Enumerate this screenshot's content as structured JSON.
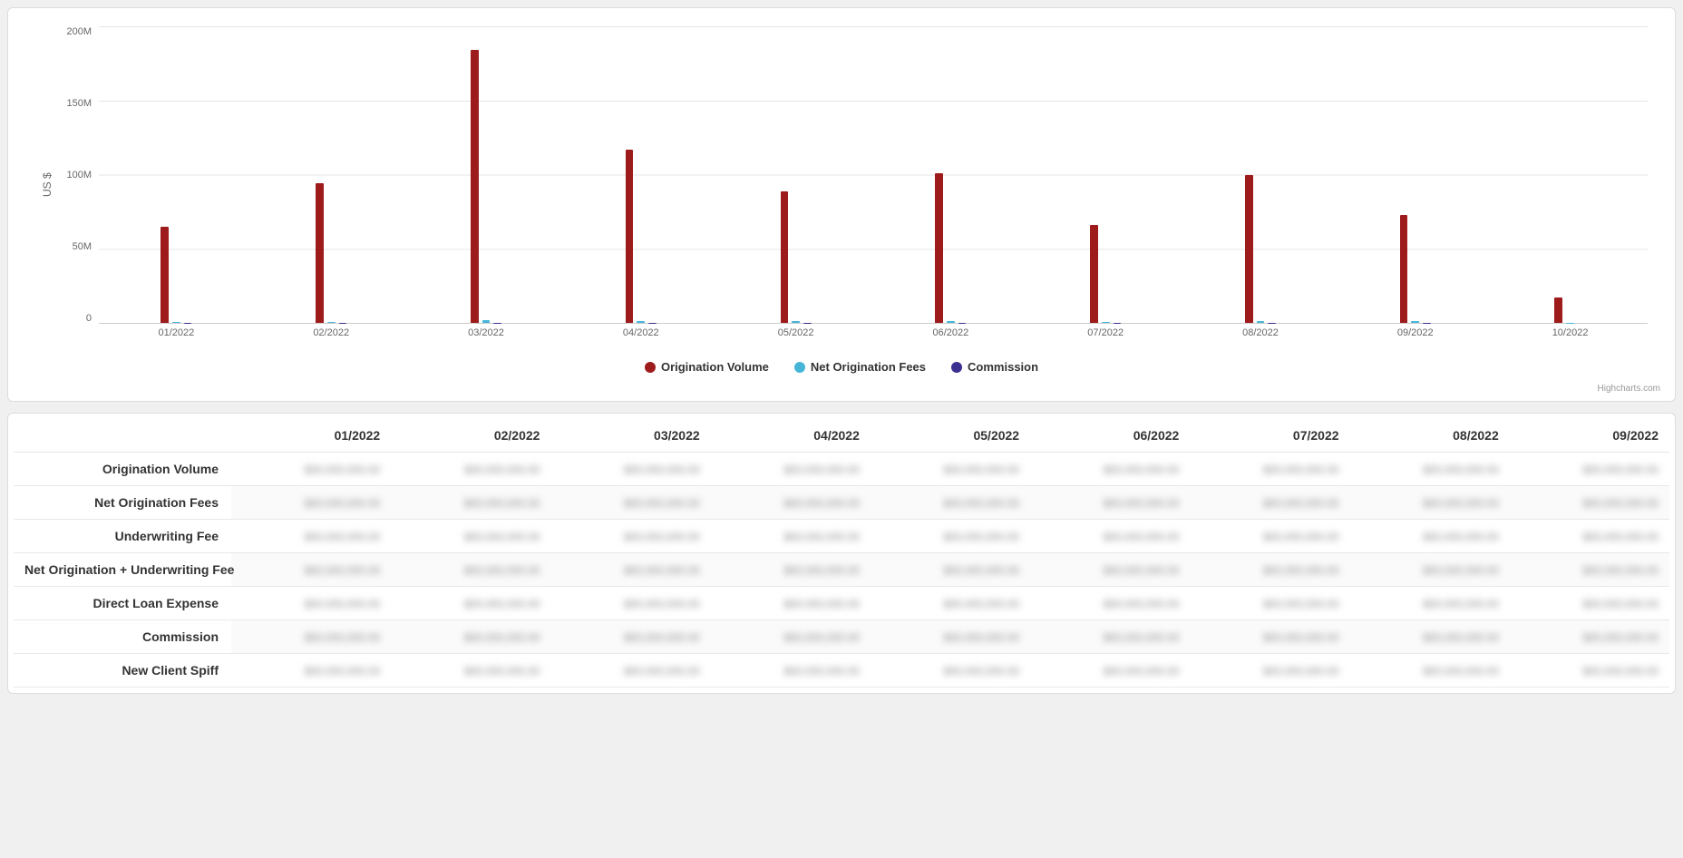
{
  "chart": {
    "type": "bar",
    "y_axis_label": "US $",
    "y_ticks": [
      "200M",
      "150M",
      "100M",
      "50M",
      "0"
    ],
    "ylim": [
      0,
      200
    ],
    "ytick_step": 50,
    "grid_color": "#e6e6e6",
    "axis_text_color": "#666666",
    "axis_fontsize": 11,
    "background_color": "#ffffff",
    "categories": [
      "01/2022",
      "02/2022",
      "03/2022",
      "04/2022",
      "05/2022",
      "06/2022",
      "07/2022",
      "08/2022",
      "09/2022",
      "10/2022"
    ],
    "series": [
      {
        "name": "Origination Volume",
        "color": "#9e1b1b",
        "values": [
          65,
          94,
          184,
          117,
          89,
          101,
          66,
          100,
          73,
          17
        ]
      },
      {
        "name": "Net Origination Fees",
        "color": "#46b5d8",
        "values": [
          0.8,
          0.9,
          2.0,
          1.0,
          1.1,
          1.1,
          0.8,
          1.2,
          1.0,
          0.2
        ]
      },
      {
        "name": "Commission",
        "color": "#3b2f8f",
        "values": [
          0.1,
          0.1,
          0.1,
          0.1,
          0.1,
          0.05,
          0.06,
          0.1,
          0.1,
          0.0
        ]
      }
    ],
    "legend_position": "bottom-center",
    "legend_fontsize": 13,
    "legend_fontweight": "bold",
    "attribution": "Highcharts.com"
  },
  "table": {
    "columns": [
      "01/2022",
      "02/2022",
      "03/2022",
      "04/2022",
      "05/2022",
      "06/2022",
      "07/2022",
      "08/2022",
      "09/2022"
    ],
    "row_labels": [
      "Origination Volume",
      "Net Origination Fees",
      "Underwriting Fee",
      "Net Origination + Underwriting Fee",
      "Direct Loan Expense",
      "Commission",
      "New Client Spiff"
    ],
    "values_redacted": true,
    "placeholder_cell": "$00,000,000.00",
    "header_fontsize": 14,
    "header_fontweight": "bold",
    "row_label_align": "right",
    "border_color": "#e8e8e8"
  }
}
